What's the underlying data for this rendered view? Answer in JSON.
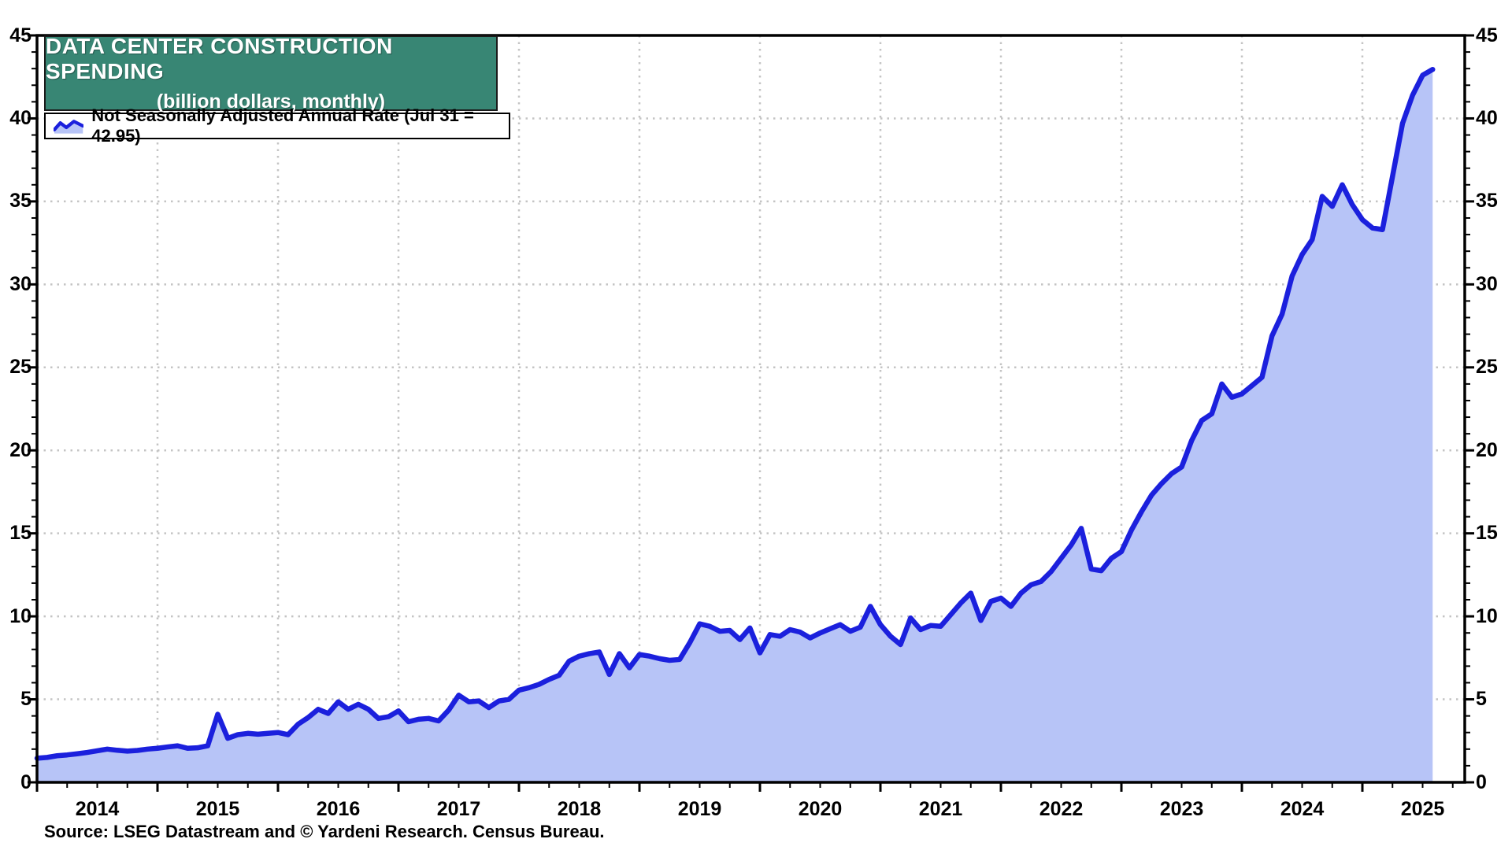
{
  "colors": {
    "line": "#1b20dd",
    "fill": "#b7c4f7",
    "title_bg": "#388674",
    "grid": "#c4c4c4",
    "axis": "#000000"
  },
  "title_box": {
    "line1": "DATA CENTER CONSTRUCTION SPENDING",
    "line2": "(billion dollars, monthly)"
  },
  "legend": {
    "label": "Not Seasonally Adjusted Annual Rate (Jul 31 = 42.95)"
  },
  "source": "Source: LSEG Datastream and © Yardeni Research. Census Bureau.",
  "y_axis": {
    "min": 0,
    "max": 45,
    "tick_step": 5,
    "ticks": [
      0,
      5,
      10,
      15,
      20,
      25,
      30,
      35,
      40,
      45
    ]
  },
  "x_axis": {
    "years": [
      2014,
      2015,
      2016,
      2017,
      2018,
      2019,
      2020,
      2021,
      2022,
      2023,
      2024,
      2025
    ]
  },
  "chart_data": {
    "type": "area",
    "title": "DATA CENTER CONSTRUCTION SPENDING",
    "subtitle": "(billion dollars, monthly)",
    "legend_entry": "Not Seasonally Adjusted Annual Rate (Jul 31 = 42.95)",
    "frequency": "monthly",
    "x_start": "Dec 2013",
    "x_end": "Jul 2025",
    "ylim": [
      0,
      45
    ],
    "grid": "dotted",
    "last_point": {
      "date": "Jul 31",
      "value": 42.95
    },
    "values": [
      1.45,
      1.5,
      1.6,
      1.65,
      1.72,
      1.8,
      1.9,
      2.0,
      1.93,
      1.88,
      1.92,
      2.0,
      2.05,
      2.13,
      2.2,
      2.05,
      2.08,
      2.2,
      4.1,
      2.65,
      2.87,
      2.95,
      2.9,
      2.95,
      3.0,
      2.87,
      3.5,
      3.9,
      4.4,
      4.15,
      4.85,
      4.4,
      4.7,
      4.4,
      3.85,
      3.95,
      4.3,
      3.65,
      3.8,
      3.85,
      3.7,
      4.35,
      5.25,
      4.85,
      4.9,
      4.5,
      4.9,
      5.0,
      5.55,
      5.7,
      5.9,
      6.2,
      6.45,
      7.3,
      7.6,
      7.75,
      7.85,
      6.5,
      7.75,
      6.9,
      7.7,
      7.6,
      7.45,
      7.35,
      7.4,
      8.4,
      9.55,
      9.4,
      9.1,
      9.15,
      8.6,
      9.3,
      7.8,
      8.9,
      8.8,
      9.2,
      9.05,
      8.7,
      9.0,
      9.25,
      9.5,
      9.1,
      9.35,
      10.6,
      9.5,
      8.8,
      8.3,
      9.9,
      9.2,
      9.45,
      9.4,
      10.1,
      10.8,
      11.4,
      9.75,
      10.9,
      11.1,
      10.6,
      11.4,
      11.9,
      12.1,
      12.7,
      13.5,
      14.3,
      15.3,
      12.85,
      12.75,
      13.5,
      13.9,
      15.2,
      16.3,
      17.3,
      18.0,
      18.6,
      19.0,
      20.6,
      21.8,
      22.2,
      24.0,
      23.2,
      23.4,
      23.9,
      24.4,
      26.9,
      28.2,
      30.5,
      31.8,
      32.7,
      35.3,
      34.7,
      36.0,
      34.8,
      33.9,
      33.4,
      33.3,
      36.5,
      39.7,
      41.4,
      42.6,
      42.95
    ]
  }
}
